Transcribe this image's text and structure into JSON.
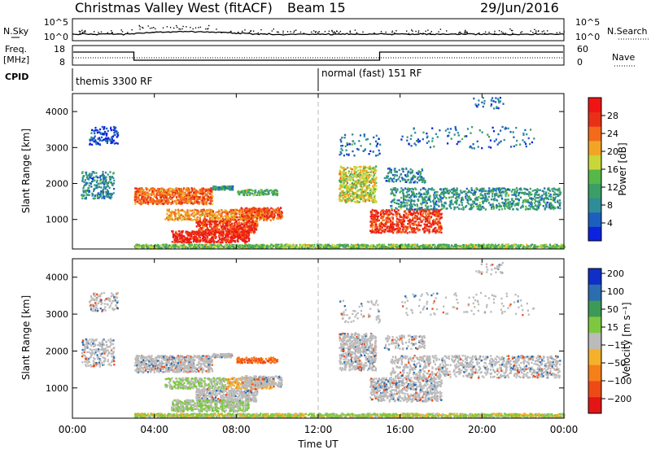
{
  "header": {
    "station": "Christmas Valley West (fitACF)",
    "beam": "Beam 15",
    "date": "29/Jun/2016"
  },
  "strip": {
    "nsky_label": "N.Sky",
    "nsky_ticks": [
      "10^5",
      "10^0"
    ],
    "nsearch_label": "N.Search",
    "nsearch_ticks": [
      "10^5",
      "10^0"
    ],
    "freq_label_1": "Freq.",
    "freq_label_2": "[MHz]",
    "freq_ticks": [
      "18",
      "8"
    ],
    "nave_label": "Nave",
    "nave_ticks": [
      "60",
      "0"
    ],
    "cpid_label": "CPID",
    "cpid_1": "themis 3300 RF",
    "cpid_2": "normal (fast) 151 RF"
  },
  "chart_data": [
    {
      "type": "heatmap",
      "title": "",
      "ylabel": "Slant Range [km]",
      "xlabel": "",
      "xlim": [
        "00:00",
        "24:00"
      ],
      "ylim": [
        180,
        4500
      ],
      "ytick_labels": [
        "1000",
        "2000",
        "3000",
        "4000"
      ],
      "yticks": [
        1000,
        2000,
        3000,
        4000
      ],
      "colorbar": {
        "label": "Power [dB]",
        "range": [
          0,
          32
        ],
        "tick_labels": [
          "4",
          "8",
          "12",
          "16",
          "20",
          "24",
          "28"
        ],
        "ticks": [
          4,
          8,
          12,
          16,
          20,
          24,
          28
        ],
        "colors": [
          "#0d22e0",
          "#1c5fc0",
          "#2f8c99",
          "#3a9e66",
          "#55b848",
          "#c8d63a",
          "#f2a425",
          "#f46a1a",
          "#e83019",
          "#ef1515"
        ]
      }
    },
    {
      "type": "heatmap",
      "title": "",
      "ylabel": "Slant Range [km]",
      "xlabel": "Time UT",
      "xlim": [
        "00:00",
        "24:00"
      ],
      "ylim": [
        180,
        4500
      ],
      "ytick_labels": [
        "1000",
        "2000",
        "3000",
        "4000"
      ],
      "yticks": [
        1000,
        2000,
        3000,
        4000
      ],
      "xtick_labels": [
        "00:00",
        "04:00",
        "08:00",
        "12:00",
        "16:00",
        "20:00",
        "00:00"
      ],
      "colorbar": {
        "label": "Velocity [m s⁻¹]",
        "range": [
          -250,
          250
        ],
        "tick_labels": [
          "200",
          "100",
          "50",
          "15",
          "−15",
          "−50",
          "−100",
          "−200"
        ],
        "colors": [
          "#0f2fc8",
          "#2c6cb0",
          "#3c9a56",
          "#7dc83f",
          "#bbbbbb",
          "#f5b12a",
          "#f57f18",
          "#ee4a16",
          "#e31515"
        ]
      }
    }
  ],
  "colors": {
    "grey_scatter": "#bebebe",
    "green": "#6ec23a",
    "orange": "#f39a1c"
  }
}
